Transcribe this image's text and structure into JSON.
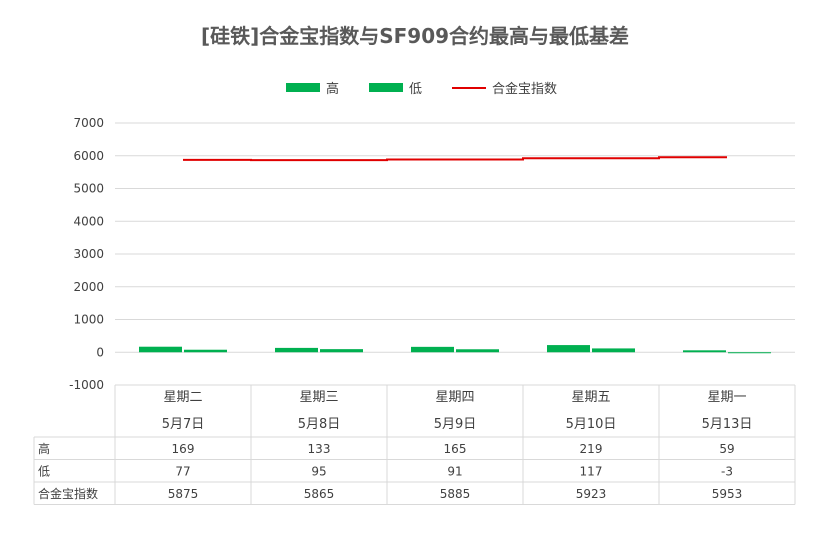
{
  "chart_data": {
    "type": "bar",
    "title": "[硅铁]合金宝指数与SF909合约最高与最低基差",
    "categories": [
      "星期二",
      "星期三",
      "星期四",
      "星期五",
      "星期一"
    ],
    "dates": [
      "5月7日",
      "5月8日",
      "5月9日",
      "5月10日",
      "5月13日"
    ],
    "series": [
      {
        "name": "高",
        "kind": "bar",
        "color": "#00b050",
        "values": [
          169,
          133,
          165,
          219,
          59
        ]
      },
      {
        "name": "低",
        "kind": "bar",
        "color": "#00b050",
        "values": [
          77,
          95,
          91,
          117,
          -3
        ]
      },
      {
        "name": "合金宝指数",
        "kind": "line",
        "color": "#e00000",
        "values": [
          5875,
          5865,
          5885,
          5923,
          5953
        ]
      }
    ],
    "ylim": [
      -1000,
      7000
    ],
    "yticks": [
      7000,
      6000,
      5000,
      4000,
      3000,
      2000,
      1000,
      0,
      -1000
    ],
    "grid": true,
    "legend_position": "top",
    "data_table": true
  }
}
